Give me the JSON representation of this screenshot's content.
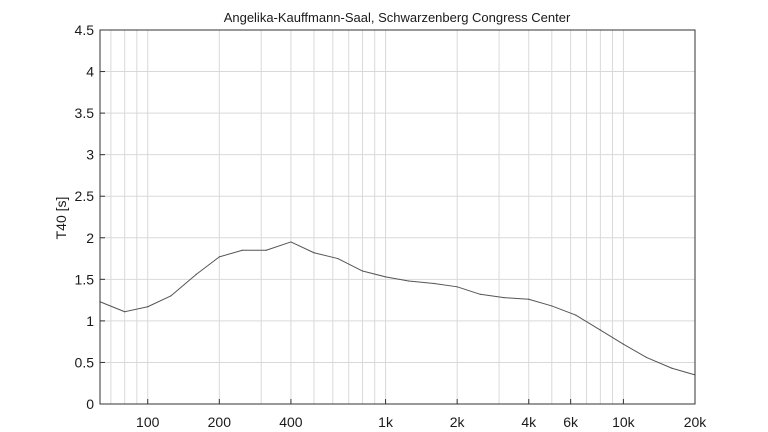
{
  "chart_data": {
    "type": "line",
    "title": "Angelika-Kauffmann-Saal, Schwarzenberg Congress Center",
    "xlabel": "",
    "ylabel": "T40 [s]",
    "x_scale": "log",
    "xlim": [
      63,
      20000
    ],
    "ylim": [
      0,
      4.5
    ],
    "grid": true,
    "x_ticks": [
      {
        "value": 100,
        "label": "100"
      },
      {
        "value": 200,
        "label": "200"
      },
      {
        "value": 400,
        "label": "400"
      },
      {
        "value": 1000,
        "label": "1k"
      },
      {
        "value": 2000,
        "label": "2k"
      },
      {
        "value": 4000,
        "label": "4k"
      },
      {
        "value": 6000,
        "label": "6k"
      },
      {
        "value": 10000,
        "label": "10k"
      },
      {
        "value": 20000,
        "label": "20k"
      }
    ],
    "y_ticks": [
      {
        "value": 0,
        "label": "0"
      },
      {
        "value": 0.5,
        "label": "0.5"
      },
      {
        "value": 1,
        "label": "1"
      },
      {
        "value": 1.5,
        "label": "1.5"
      },
      {
        "value": 2,
        "label": "2"
      },
      {
        "value": 2.5,
        "label": "2.5"
      },
      {
        "value": 3,
        "label": "3"
      },
      {
        "value": 3.5,
        "label": "3.5"
      },
      {
        "value": 4,
        "label": "4"
      },
      {
        "value": 4.5,
        "label": "4.5"
      }
    ],
    "series": [
      {
        "color": "#555555",
        "x": [
          63,
          80,
          100,
          125,
          160,
          200,
          250,
          315,
          400,
          500,
          630,
          800,
          1000,
          1250,
          1600,
          2000,
          2500,
          3150,
          4000,
          5000,
          6300,
          8000,
          10000,
          12500,
          16000,
          20000
        ],
        "y": [
          1.23,
          1.11,
          1.17,
          1.3,
          1.56,
          1.77,
          1.85,
          1.85,
          1.95,
          1.82,
          1.75,
          1.6,
          1.53,
          1.48,
          1.45,
          1.41,
          1.32,
          1.28,
          1.26,
          1.18,
          1.07,
          0.89,
          0.72,
          0.56,
          0.43,
          0.35
        ]
      }
    ]
  },
  "style": {
    "axis_color": "#333333",
    "grid_color": "#d9d9d9"
  }
}
